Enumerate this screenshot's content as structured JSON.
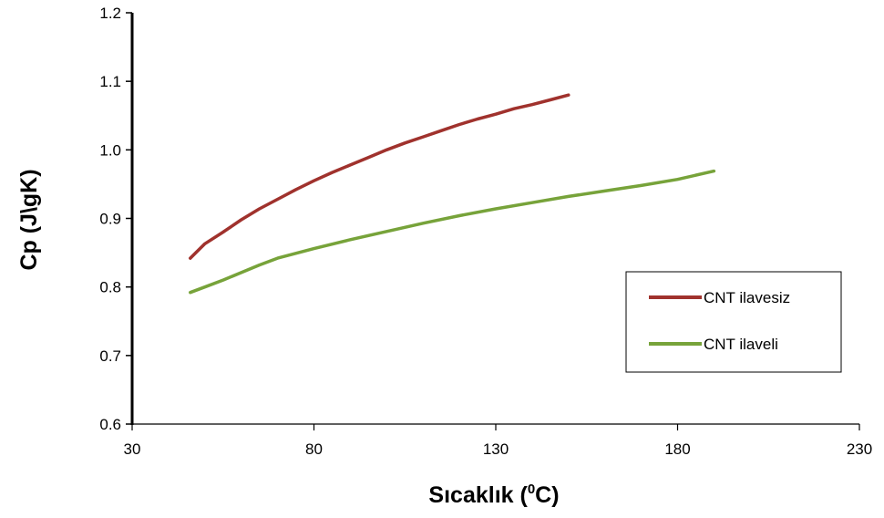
{
  "chart_data": {
    "type": "line",
    "title": "",
    "xlabel": "Sıcaklık (",
    "xlabel_sup": "0",
    "xlabel_unit": "C)",
    "ylabel": "Cp (J\\gK)",
    "xlim": [
      30,
      230
    ],
    "ylim": [
      0.6,
      1.2
    ],
    "xticks": [
      "30",
      "80",
      "130",
      "180",
      "230"
    ],
    "yticks": [
      "0.6",
      "0.7",
      "0.8",
      "0.9",
      "1.0",
      "1.1",
      "1.2"
    ],
    "grid": false,
    "legend_position": "right",
    "series": [
      {
        "name": "CNT ilavesiz",
        "color": "#a0322d",
        "x": [
          46,
          50,
          55,
          60,
          65,
          70,
          75,
          80,
          85,
          90,
          95,
          100,
          105,
          110,
          115,
          120,
          125,
          130,
          135,
          140,
          145,
          150
        ],
        "y": [
          0.842,
          0.863,
          0.88,
          0.898,
          0.914,
          0.928,
          0.942,
          0.955,
          0.967,
          0.978,
          0.989,
          1.0,
          1.01,
          1.019,
          1.028,
          1.037,
          1.045,
          1.052,
          1.06,
          1.066,
          1.073,
          1.08
        ]
      },
      {
        "name": "CNT ilaveli",
        "color": "#77a33a",
        "x": [
          46,
          50,
          55,
          60,
          65,
          70,
          80,
          90,
          100,
          110,
          120,
          130,
          140,
          150,
          160,
          170,
          180,
          190
        ],
        "y": [
          0.792,
          0.8,
          0.81,
          0.821,
          0.832,
          0.842,
          0.856,
          0.869,
          0.881,
          0.893,
          0.904,
          0.914,
          0.923,
          0.932,
          0.94,
          0.948,
          0.957,
          0.969
        ]
      }
    ]
  }
}
